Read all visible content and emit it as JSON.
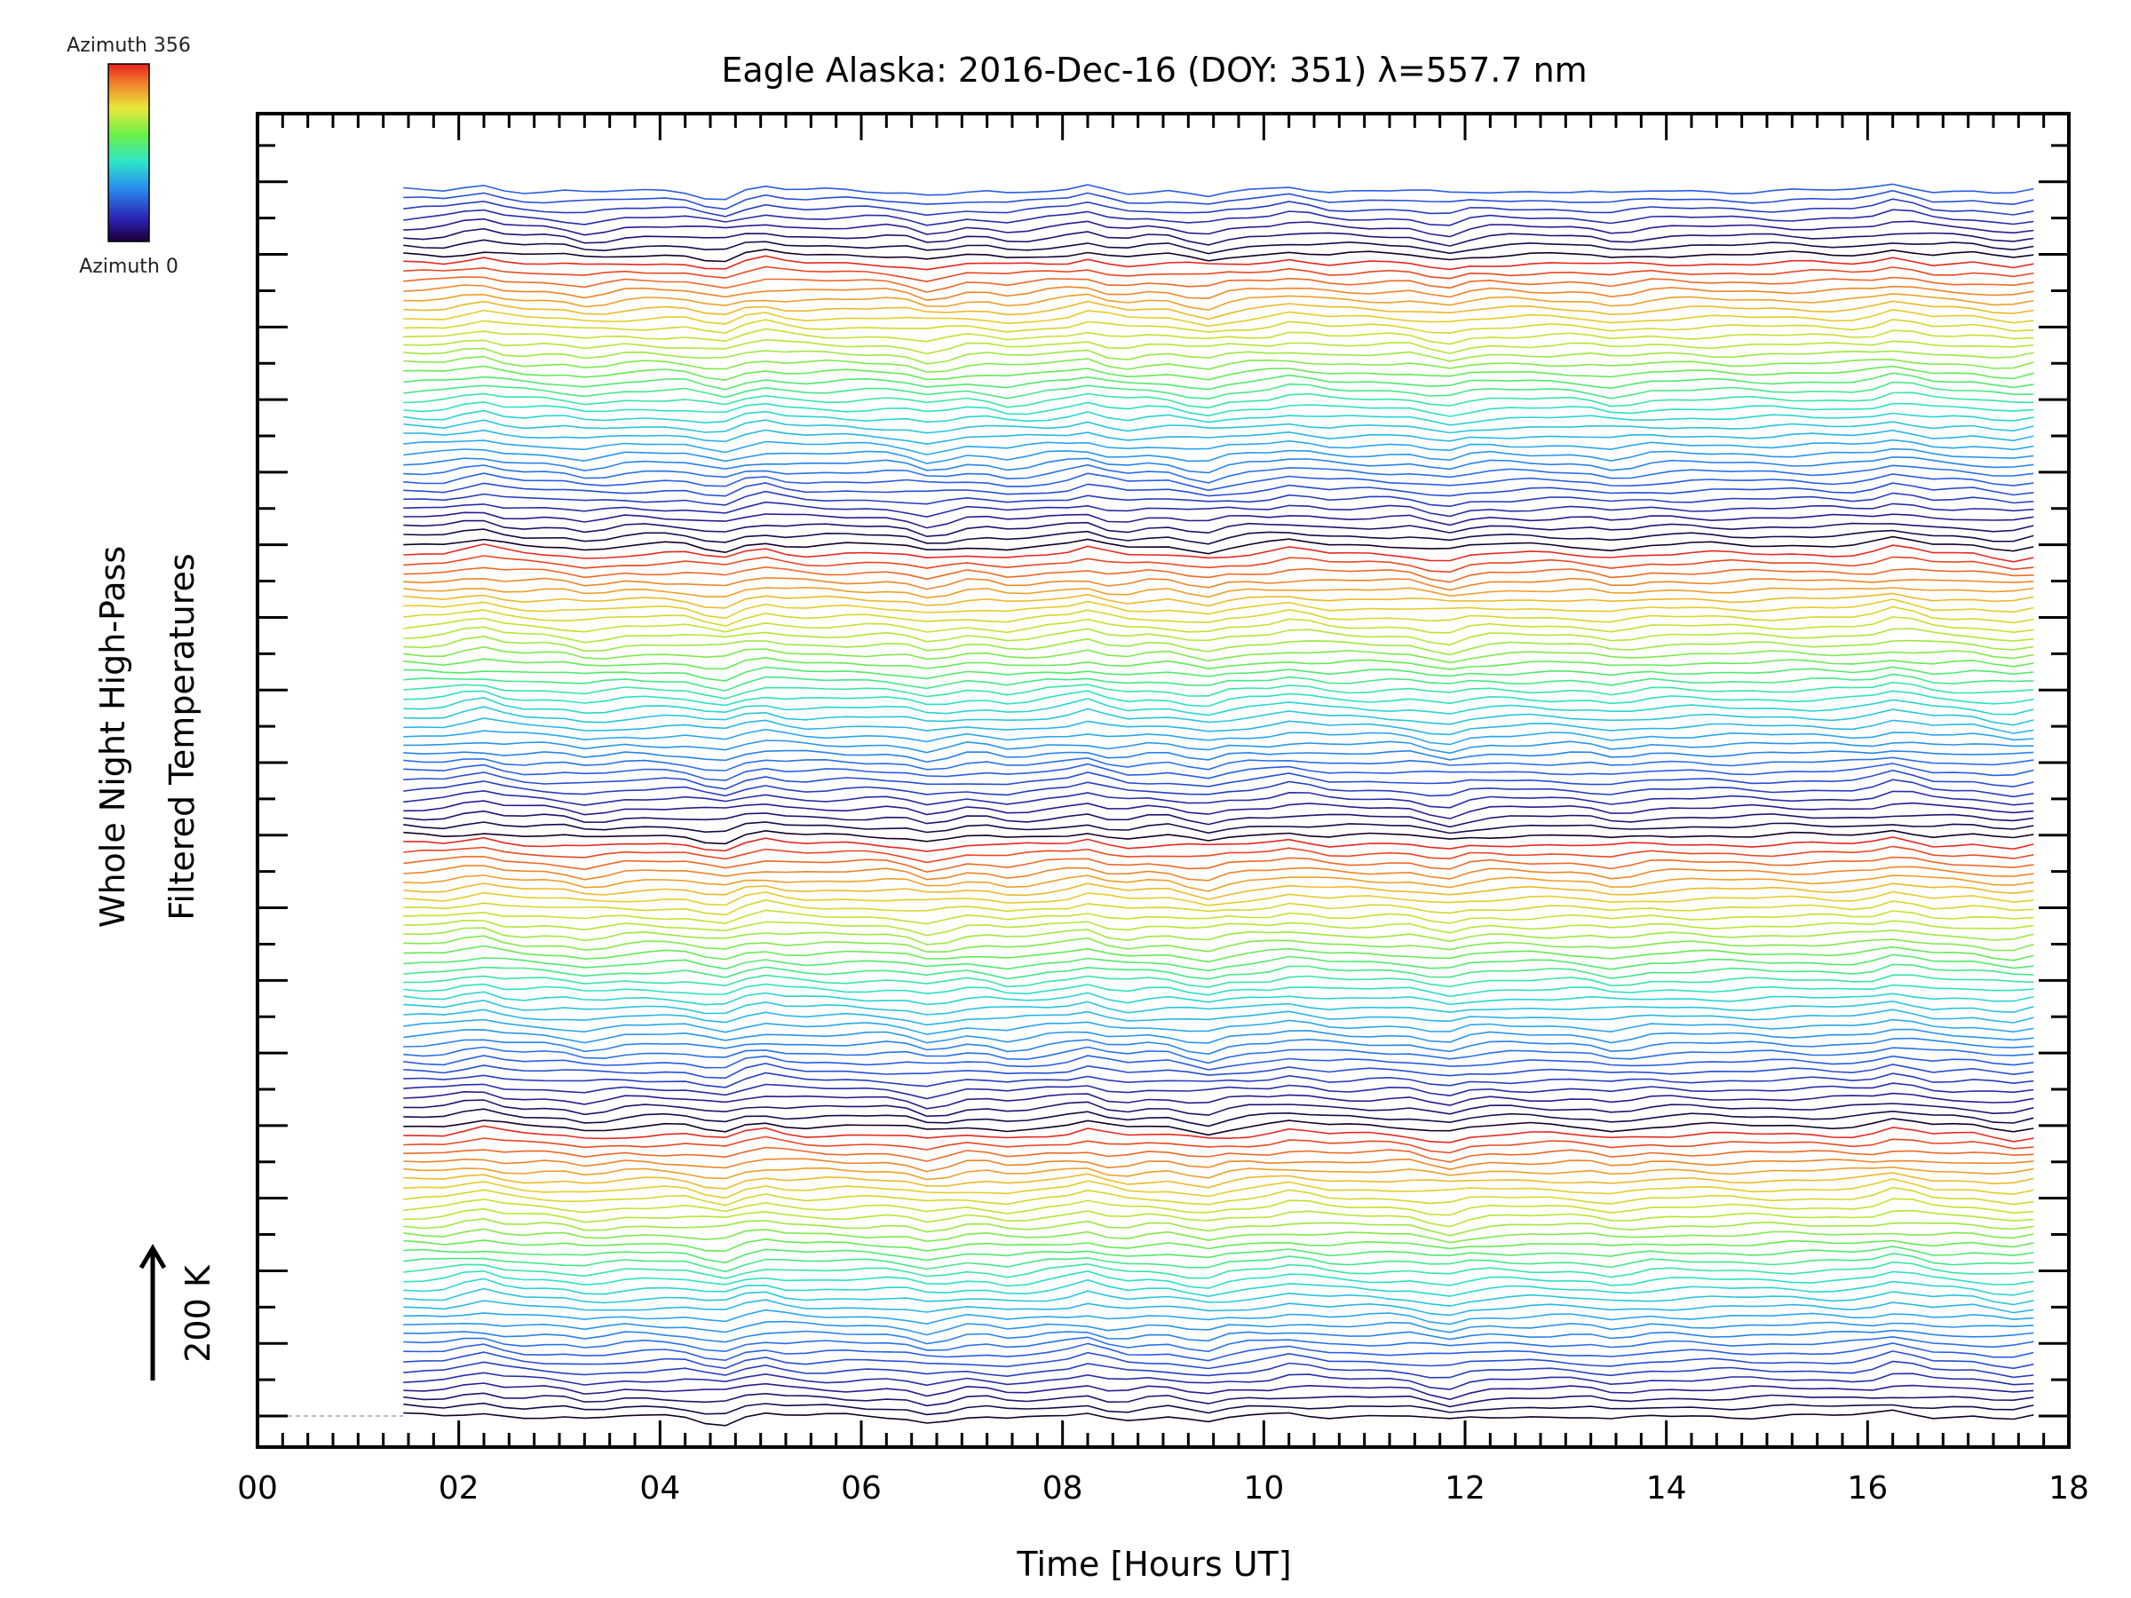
{
  "chart_data": {
    "type": "line",
    "title": "Eagle Alaska: 2016-Dec-16 (DOY: 351) λ=557.7 nm",
    "xlabel": "Time [Hours UT]",
    "ylabel_line1": "Whole Night High-Pass",
    "ylabel_line2": "Filtered Temperatures",
    "scale_bar_label": "200 K",
    "xlim": [
      0,
      18
    ],
    "x_tick_labels": [
      "00",
      "02",
      "04",
      "06",
      "08",
      "10",
      "12",
      "14",
      "16",
      "18"
    ],
    "x_ticks": [
      0,
      2,
      4,
      6,
      8,
      10,
      12,
      14,
      16,
      18
    ],
    "colorbar": {
      "top_label": "Azimuth 356",
      "bottom_label": "Azimuth 0",
      "min": 0,
      "max": 356,
      "colormap": "rainbow"
    },
    "series_count": 136,
    "azimuth_cycle": 32,
    "time_start": 1.45,
    "time_end": 17.75,
    "disturbance_times": [
      2.2,
      3.3,
      4.6,
      5.0,
      6.7,
      7.5,
      8.3,
      8.5,
      9.4,
      10.3,
      11.8,
      13.5,
      16.3,
      17.4
    ]
  },
  "colors": {
    "axis": "#000000",
    "baseline": "#aaaaaa",
    "background": "#ffffff"
  }
}
